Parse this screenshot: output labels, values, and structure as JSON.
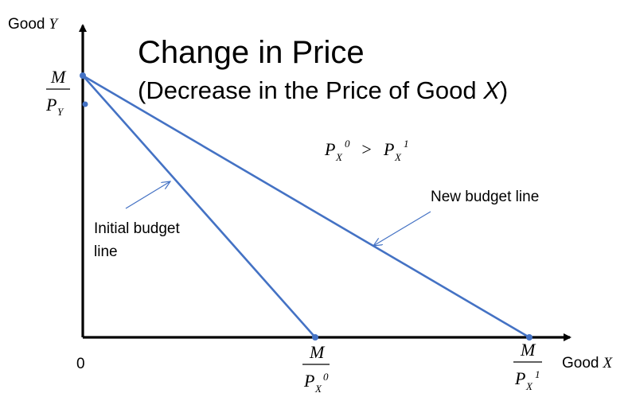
{
  "title": "Change in Price",
  "subtitle_prefix": "(Decrease in the Price of Good ",
  "subtitle_var": "X",
  "subtitle_suffix": ")",
  "y_axis_label_word": "Good",
  "y_axis_label_var": "Y",
  "x_axis_label_word": "Good",
  "x_axis_label_var": "X",
  "origin_label": "0",
  "y_intercept": {
    "numerator": "M",
    "denominator": "P",
    "subscript": "Y"
  },
  "x_intercept_initial": {
    "numerator": "M",
    "denominator": "P",
    "subscript": "X",
    "superscript": "0"
  },
  "x_intercept_new": {
    "numerator": "M",
    "denominator": "P",
    "subscript": "X",
    "superscript": "1"
  },
  "condition": {
    "left": "P",
    "left_sub": "X",
    "left_sup": "0",
    "op": ">",
    "right": "P",
    "right_sub": "X",
    "right_sup": "1"
  },
  "initial_budget_label_line1": "Initial budget",
  "initial_budget_label_line2": "line",
  "new_budget_label": "New budget line",
  "colors": {
    "budget_line": "#4472c4",
    "axis": "#000000"
  }
}
